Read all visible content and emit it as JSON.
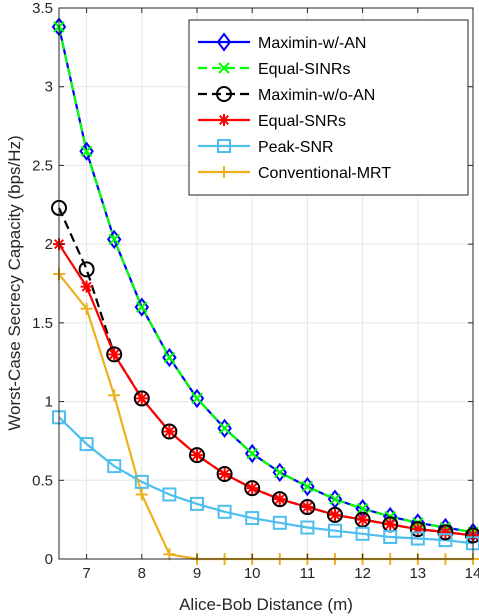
{
  "chart_data": {
    "type": "line",
    "xlabel": "Alice-Bob Distance (m)",
    "ylabel": "Worst-Case Secrecy Capacity (bps/Hz)",
    "xlim": [
      6.5,
      14
    ],
    "ylim": [
      0,
      3.5
    ],
    "x_ticks": [
      7,
      8,
      9,
      10,
      11,
      12,
      13,
      14
    ],
    "x_tick_labels": [
      "7",
      "8",
      "9",
      "10",
      "11",
      "12",
      "13",
      "14"
    ],
    "y_ticks": [
      0,
      0.5,
      1,
      1.5,
      2,
      2.5,
      3,
      3.5
    ],
    "y_tick_labels": [
      "0",
      "0.5",
      "1",
      "1.5",
      "2",
      "2.5",
      "3",
      "3.5"
    ],
    "grid": true,
    "legend_position": "top-right",
    "x": [
      6.5,
      7,
      7.5,
      8,
      8.5,
      9,
      9.5,
      10,
      10.5,
      11,
      11.5,
      12,
      12.5,
      13,
      13.5,
      14
    ],
    "series": [
      {
        "name": "Maximin-w/-AN",
        "color": "#0000ff",
        "marker": "diamond",
        "dash": "solid",
        "values": [
          3.38,
          2.59,
          2.03,
          1.6,
          1.28,
          1.02,
          0.83,
          0.67,
          0.55,
          0.46,
          0.38,
          0.32,
          0.27,
          0.23,
          0.2,
          0.17
        ]
      },
      {
        "name": "Equal-SINRs",
        "color": "#00ff00",
        "marker": "x",
        "dash": "dashed",
        "values": [
          3.38,
          2.59,
          2.03,
          1.6,
          1.28,
          1.02,
          0.83,
          0.67,
          0.55,
          0.46,
          0.38,
          0.32,
          0.27,
          0.23,
          0.2,
          0.17
        ]
      },
      {
        "name": "Maximin-w/o-AN",
        "color": "#000000",
        "marker": "circle",
        "dash": "dashed",
        "values": [
          2.23,
          1.84,
          1.3,
          1.02,
          0.81,
          0.66,
          0.54,
          0.45,
          0.38,
          0.33,
          0.28,
          0.25,
          0.22,
          0.19,
          0.17,
          0.15
        ]
      },
      {
        "name": "Equal-SNRs",
        "color": "#ff0000",
        "marker": "asterisk",
        "dash": "solid",
        "values": [
          2.0,
          1.73,
          1.3,
          1.02,
          0.81,
          0.66,
          0.54,
          0.45,
          0.38,
          0.33,
          0.28,
          0.25,
          0.22,
          0.19,
          0.17,
          0.15
        ]
      },
      {
        "name": "Peak-SNR",
        "color": "#4dbeee",
        "marker": "square",
        "dash": "solid",
        "values": [
          0.9,
          0.73,
          0.59,
          0.49,
          0.41,
          0.35,
          0.3,
          0.26,
          0.23,
          0.2,
          0.18,
          0.16,
          0.14,
          0.13,
          0.12,
          0.1
        ]
      },
      {
        "name": "Conventional-MRT",
        "color": "#edb120",
        "marker": "plus",
        "dash": "solid",
        "values": [
          1.81,
          1.59,
          1.04,
          0.41,
          0.03,
          0.0,
          0.0,
          0.0,
          0.0,
          0.0,
          0.0,
          0.0,
          0.0,
          0.0,
          0.0,
          0.0
        ]
      }
    ]
  }
}
